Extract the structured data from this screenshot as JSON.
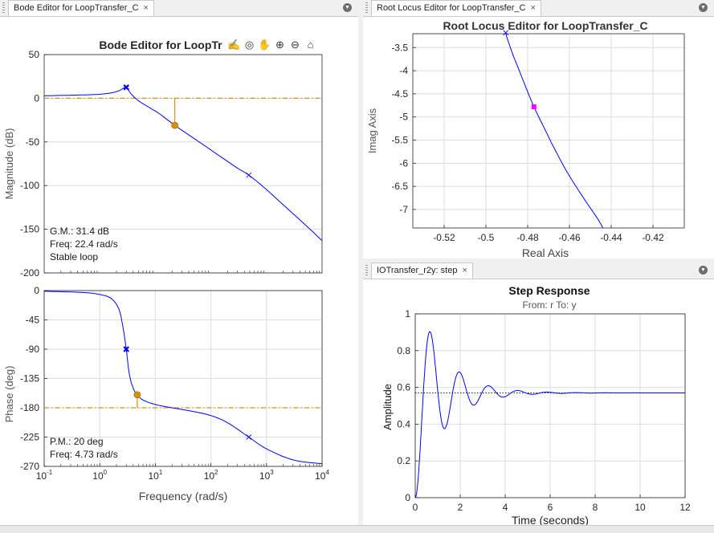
{
  "tabs": {
    "bode": "Bode Editor for LoopTransfer_C",
    "rlocus": "Root Locus Editor for LoopTransfer_C",
    "step": "IOTransfer_r2y: step",
    "close_glyph": "×",
    "menu_glyph": "▼"
  },
  "toolbar": {
    "icons": [
      "pan-edit-icon",
      "data-cursor-icon",
      "hand-icon",
      "zoom-in-icon",
      "zoom-out-icon",
      "home-icon"
    ],
    "glyphs": [
      "✍",
      "◎",
      "✋",
      "⊕",
      "⊖",
      "⌂"
    ]
  },
  "colors": {
    "line": "#0000ff",
    "margin": "#d4920b",
    "pole": "#ff00ff",
    "axis": "#262626",
    "grid": "#dcdcdc"
  },
  "chart_data": [
    {
      "type": "line",
      "id": "bode-magnitude",
      "title": "Bode Editor for LoopTr",
      "ylabel": "Magnitude (dB)",
      "xscale": "log",
      "xlim": [
        0.1,
        10000
      ],
      "ylim": [
        -200,
        50
      ],
      "yticks": [
        50,
        0,
        -50,
        -100,
        -150,
        -200
      ],
      "series": [
        {
          "values": [
            [
              0.1,
              2.8
            ],
            [
              0.3,
              3.5
            ],
            [
              0.8,
              4.2
            ],
            [
              1.5,
              5.8
            ],
            [
              2.2,
              8.5
            ],
            [
              3.0,
              12.5
            ],
            [
              3.6,
              5.5
            ],
            [
              5,
              -3
            ],
            [
              8,
              -11
            ],
            [
              12,
              -18
            ],
            [
              22.4,
              -31
            ],
            [
              40,
              -42
            ],
            [
              80,
              -55
            ],
            [
              150,
              -67
            ],
            [
              300,
              -80
            ],
            [
              480,
              -88
            ],
            [
              900,
              -102
            ],
            [
              2000,
              -122
            ],
            [
              5000,
              -145
            ],
            [
              10000,
              -163
            ]
          ]
        }
      ],
      "reference_line": {
        "y": 0
      },
      "markers": [
        {
          "kind": "compensator-pole",
          "x": 3.0,
          "y": 12.5
        },
        {
          "kind": "plant-pole",
          "x": 480,
          "y": -88
        },
        {
          "kind": "gain-margin",
          "x": 22.4,
          "y": -31
        }
      ],
      "annotation": [
        "G.M.: 31.4 dB",
        "Freq: 22.4 rad/s",
        "Stable loop"
      ]
    },
    {
      "type": "line",
      "id": "bode-phase",
      "xlabel": "Frequency (rad/s)",
      "ylabel": "Phase (deg)",
      "xscale": "log",
      "xlim": [
        0.1,
        10000
      ],
      "ylim": [
        -270,
        0
      ],
      "yticks": [
        0,
        -45,
        -90,
        -135,
        -180,
        -225,
        -270
      ],
      "xticks": [
        0.1,
        1,
        10,
        100,
        1000,
        10000
      ],
      "xtick_labels": [
        {
          "base": "10",
          "exp": "-1"
        },
        {
          "base": "10",
          "exp": "0"
        },
        {
          "base": "10",
          "exp": "1"
        },
        {
          "base": "10",
          "exp": "2"
        },
        {
          "base": "10",
          "exp": "3"
        },
        {
          "base": "10",
          "exp": "4"
        }
      ],
      "series": [
        {
          "values": [
            [
              0.1,
              -1
            ],
            [
              0.5,
              -3
            ],
            [
              1,
              -6
            ],
            [
              1.6,
              -12
            ],
            [
              2.2,
              -28
            ],
            [
              2.6,
              -55
            ],
            [
              3.0,
              -90
            ],
            [
              3.4,
              -128
            ],
            [
              4.0,
              -150
            ],
            [
              4.73,
              -160
            ],
            [
              6,
              -168
            ],
            [
              10,
              -175
            ],
            [
              20,
              -180
            ],
            [
              50,
              -186
            ],
            [
              100,
              -192
            ],
            [
              200,
              -203
            ],
            [
              480,
              -225
            ],
            [
              1000,
              -243
            ],
            [
              3000,
              -260
            ],
            [
              10000,
              -266
            ]
          ]
        }
      ],
      "reference_line": {
        "y": -180
      },
      "markers": [
        {
          "kind": "compensator-pole",
          "x": 3.0,
          "y": -90
        },
        {
          "kind": "plant-pole",
          "x": 480,
          "y": -225
        },
        {
          "kind": "phase-margin",
          "x": 4.73,
          "y": -160
        }
      ],
      "annotation": [
        "P.M.: 20 deg",
        "Freq: 4.73 rad/s"
      ]
    },
    {
      "type": "line",
      "id": "root-locus",
      "title": "Root Locus Editor for LoopTransfer_C",
      "xlabel": "Real Axis",
      "ylabel": "Imag Axis",
      "xlim": [
        -0.535,
        -0.405
      ],
      "ylim": [
        -7.4,
        -3.2
      ],
      "xticks": [
        -0.52,
        -0.5,
        -0.48,
        -0.46,
        -0.44,
        -0.42
      ],
      "xtick_labels": [
        "-0.52",
        "-0.5",
        "-0.48",
        "-0.46",
        "-0.44",
        "-0.42"
      ],
      "yticks": [
        -3.5,
        -4,
        -4.5,
        -5,
        -5.5,
        -6,
        -6.5,
        -7
      ],
      "ytick_labels": [
        "-3.5",
        "-4",
        "-4.5",
        "-5",
        "-5.5",
        "-6",
        "-6.5",
        "-7"
      ],
      "series": [
        {
          "values": [
            [
              -0.4905,
              -3.2
            ],
            [
              -0.4875,
              -3.6
            ],
            [
              -0.484,
              -4.0
            ],
            [
              -0.4805,
              -4.4
            ],
            [
              -0.477,
              -4.78
            ],
            [
              -0.4725,
              -5.2
            ],
            [
              -0.467,
              -5.7
            ],
            [
              -0.461,
              -6.2
            ],
            [
              -0.454,
              -6.7
            ],
            [
              -0.4465,
              -7.2
            ],
            [
              -0.444,
              -7.4
            ]
          ]
        }
      ],
      "markers": [
        {
          "kind": "open-loop-pole",
          "x": -0.4905,
          "y": -3.18
        },
        {
          "kind": "closed-loop-pole",
          "x": -0.477,
          "y": -4.78
        }
      ]
    },
    {
      "type": "line",
      "id": "step-response",
      "title": "Step Response",
      "subtitle": "From: r  To: y",
      "xlabel": "Time (seconds)",
      "ylabel": "Amplitude",
      "xlim": [
        0,
        12
      ],
      "ylim": [
        0,
        1
      ],
      "xticks": [
        0,
        2,
        4,
        6,
        8,
        10,
        12
      ],
      "yticks": [
        0,
        0.2,
        0.4,
        0.6,
        0.8,
        1
      ],
      "ytick_labels": [
        "0",
        "0.2",
        "0.4",
        "0.6",
        "0.8",
        "1"
      ],
      "steady_state": 0.57,
      "response_model": {
        "final": 0.57,
        "peak_time": 0.65,
        "overshoot": 0.415,
        "decay": 0.585
      }
    }
  ]
}
